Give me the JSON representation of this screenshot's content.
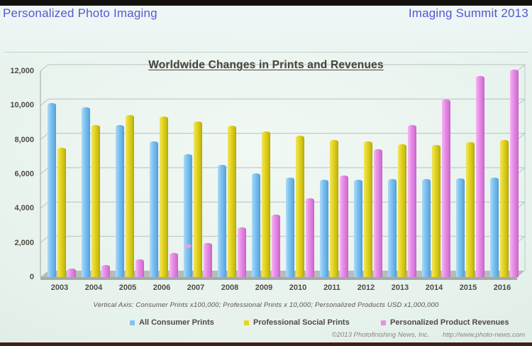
{
  "header": {
    "left": "Personalized Photo Imaging",
    "right": "Imaging Summit 2013"
  },
  "chart_data": {
    "type": "bar",
    "title": "Worldwide Changes in Prints and Revenues",
    "note": "Vertical Axis: Consumer Prints x100,000; Professional Prints x 10,000; Personalized Products USD x1,000,000",
    "categories": [
      "2003",
      "2004",
      "2005",
      "2006",
      "2007",
      "2008",
      "2009",
      "2010",
      "2011",
      "2012",
      "2013",
      "2014",
      "2015",
      "2016"
    ],
    "series": [
      {
        "name": "All Consumer Prints",
        "color": "#7fc4f1",
        "values": [
          10150,
          9900,
          8850,
          7900,
          7150,
          6550,
          6050,
          5800,
          5650,
          5650,
          5700,
          5700,
          5750,
          5800
        ]
      },
      {
        "name": "Professional Social Prints",
        "color": "#e4d522",
        "values": [
          7550,
          8850,
          9450,
          9350,
          9050,
          8800,
          8500,
          8250,
          8000,
          7900,
          7750,
          7700,
          7850,
          8000
        ]
      },
      {
        "name": "Personalized Product Revenues",
        "color": "#e88ee8",
        "values": [
          500,
          700,
          1050,
          1400,
          2000,
          2900,
          3650,
          4600,
          5900,
          7450,
          8850,
          10350,
          11700,
          12100
        ]
      }
    ],
    "ylim": [
      0,
      12000
    ],
    "yticks": [
      0,
      2000,
      4000,
      6000,
      8000,
      10000,
      12000
    ],
    "ytick_labels": [
      "0",
      "2,000",
      "4,000",
      "6,000",
      "8,000",
      "10,000",
      "12,000"
    ],
    "xlabel": "",
    "ylabel": "",
    "grid": true,
    "legend_position": "bottom"
  },
  "footer": {
    "copyright": "©2013 Photofinishing News, Inc.",
    "url": "http://www.photo-news.com"
  }
}
